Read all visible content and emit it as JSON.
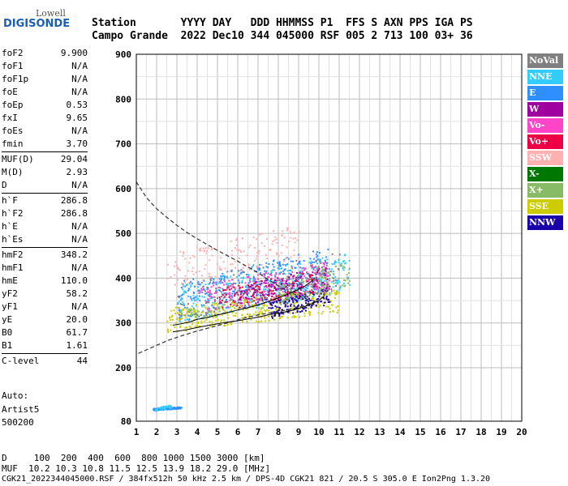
{
  "logo": {
    "top": "Lowell",
    "bottom": "DIGISONDE"
  },
  "header": {
    "row1": "Station       YYYY DAY   DDD HHMMSS P1  FFS S AXN PPS IGA PS",
    "row2": "Campo Grande  2022 Dec10 344 045000 RSF 005 2 713 100 03+ 36"
  },
  "params": [
    {
      "group": [
        {
          "name": "foF2",
          "value": "9.900"
        },
        {
          "name": "foF1",
          "value": "N/A"
        },
        {
          "name": "foF1p",
          "value": "N/A"
        },
        {
          "name": "foE",
          "value": "N/A"
        },
        {
          "name": "foEp",
          "value": "0.53"
        },
        {
          "name": "fxI",
          "value": "9.65"
        },
        {
          "name": "foEs",
          "value": "N/A"
        },
        {
          "name": "fmin",
          "value": "3.70"
        }
      ]
    },
    {
      "group": [
        {
          "name": "MUF(D)",
          "value": "29.04"
        },
        {
          "name": "M(D)",
          "value": "2.93"
        },
        {
          "name": "D",
          "value": "N/A"
        }
      ]
    },
    {
      "group": [
        {
          "name": "h`F",
          "value": "286.8"
        },
        {
          "name": "h`F2",
          "value": "286.8"
        },
        {
          "name": "h`E",
          "value": "N/A"
        },
        {
          "name": "h`Es",
          "value": "N/A"
        }
      ]
    },
    {
      "group": [
        {
          "name": "hmF2",
          "value": "348.2"
        },
        {
          "name": "hmF1",
          "value": "N/A"
        },
        {
          "name": "hmE",
          "value": "110.0"
        },
        {
          "name": "yF2",
          "value": "58.2"
        },
        {
          "name": "yF1",
          "value": "N/A"
        },
        {
          "name": "yE",
          "value": "20.0"
        },
        {
          "name": "B0",
          "value": "61.7"
        },
        {
          "name": "B1",
          "value": "1.61"
        }
      ]
    },
    {
      "group": [
        {
          "name": "C-level",
          "value": "44"
        }
      ]
    }
  ],
  "auto": {
    "line1": "Auto:",
    "line2": "Artist5",
    "line3": "500200"
  },
  "footer": {
    "d_line": "D     100  200  400  600  800 1000 1500 3000 [km]",
    "muf_line": "MUF  10.2 10.3 10.8 11.5 12.5 13.9 18.2 29.0 [MHz]",
    "info_line": "CGK21_2022344045000.RSF / 384fx512h 50 kHz 2.5 km / DPS-4D CGK21 821 / 20.5 S 305.0 E Ion2Png 1.3.20"
  },
  "legend": [
    {
      "label": "NoVal",
      "color": "#808080"
    },
    {
      "label": "NNE",
      "color": "#33ccff"
    },
    {
      "label": "E",
      "color": "#2f8fff"
    },
    {
      "label": "W",
      "color": "#a0009f"
    },
    {
      "label": "Vo-",
      "color": "#ff44c8"
    },
    {
      "label": "Vo+",
      "color": "#ee0044"
    },
    {
      "label": "SSW",
      "color": "#ffb0b0"
    },
    {
      "label": "X-",
      "color": "#007700"
    },
    {
      "label": "X+",
      "color": "#88bb66"
    },
    {
      "label": "SSE",
      "color": "#cccc00"
    },
    {
      "label": "NNW",
      "color": "#1a00aa"
    }
  ],
  "chart_data": {
    "type": "scatter",
    "title": "",
    "xlabel": "",
    "ylabel": "",
    "xlim": [
      1,
      20
    ],
    "ylim": [
      80,
      900
    ],
    "xticks": [
      1,
      2,
      3,
      4,
      5,
      6,
      7,
      8,
      9,
      10,
      11,
      12,
      13,
      14,
      15,
      16,
      17,
      18,
      19,
      20
    ],
    "yticks": [
      80,
      200,
      300,
      400,
      500,
      600,
      700,
      800,
      900
    ],
    "grid": true,
    "legend_position": "right",
    "profile_dashed": [
      [
        1,
        615
      ],
      [
        1.5,
        580
      ],
      [
        2,
        555
      ],
      [
        2.5,
        536
      ],
      [
        3,
        518
      ],
      [
        3.5,
        502
      ],
      [
        4,
        488
      ],
      [
        4.5,
        475
      ],
      [
        5,
        462
      ],
      [
        5.5,
        450
      ],
      [
        6,
        438
      ],
      [
        6.5,
        425
      ],
      [
        7,
        412
      ],
      [
        7.5,
        397
      ],
      [
        8,
        383
      ],
      [
        8.5,
        370
      ],
      [
        9,
        360
      ],
      [
        9.5,
        352
      ],
      [
        9.9,
        348
      ],
      [
        9.5,
        342
      ],
      [
        9,
        335
      ],
      [
        8.5,
        330
      ],
      [
        8,
        325
      ],
      [
        7.5,
        322
      ],
      [
        7,
        318
      ],
      [
        6.5,
        313
      ],
      [
        6,
        307
      ],
      [
        5.5,
        300
      ],
      [
        5,
        294
      ],
      [
        4.5,
        288
      ],
      [
        4,
        282
      ],
      [
        3.5,
        275
      ],
      [
        3,
        268
      ],
      [
        2.5,
        260
      ],
      [
        2,
        250
      ],
      [
        1.5,
        240
      ],
      [
        1,
        230
      ]
    ],
    "trace_o": [
      [
        2.8,
        295
      ],
      [
        3.2,
        298
      ],
      [
        3.6,
        302
      ],
      [
        4,
        308
      ],
      [
        4.5,
        312
      ],
      [
        5,
        318
      ],
      [
        5.5,
        323
      ],
      [
        6,
        329
      ],
      [
        6.5,
        334
      ],
      [
        7,
        340
      ],
      [
        7.5,
        348
      ],
      [
        8,
        356
      ],
      [
        8.5,
        365
      ],
      [
        9,
        375
      ],
      [
        9.3,
        382
      ],
      [
        9.6,
        392
      ],
      [
        9.8,
        400
      ]
    ],
    "trace_x": [
      [
        2.8,
        280
      ],
      [
        3.5,
        285
      ],
      [
        4,
        290
      ],
      [
        4.5,
        294
      ],
      [
        5,
        298
      ],
      [
        5.5,
        302
      ],
      [
        6,
        305
      ],
      [
        6.5,
        309
      ],
      [
        7,
        313
      ],
      [
        7.5,
        318
      ],
      [
        8,
        322
      ],
      [
        8.5,
        326
      ],
      [
        9,
        332
      ],
      [
        9.5,
        340
      ],
      [
        10,
        350
      ],
      [
        10.3,
        362
      ]
    ],
    "clusters": [
      {
        "series": "E",
        "x": [
          3,
          10.5
        ],
        "y": [
          300,
          470
        ],
        "count": 420
      },
      {
        "series": "NNE",
        "x": [
          3,
          11.5
        ],
        "y": [
          300,
          460
        ],
        "count": 300
      },
      {
        "series": "SSE",
        "x": [
          2.5,
          11
        ],
        "y": [
          280,
          380
        ],
        "count": 380
      },
      {
        "series": "Vo-",
        "x": [
          4,
          10.5
        ],
        "y": [
          320,
          440
        ],
        "count": 200
      },
      {
        "series": "W",
        "x": [
          6,
          10.5
        ],
        "y": [
          330,
          430
        ],
        "count": 180
      },
      {
        "series": "NNW",
        "x": [
          7.5,
          10.5
        ],
        "y": [
          310,
          380
        ],
        "count": 150
      },
      {
        "series": "SSW",
        "x": [
          2.5,
          9
        ],
        "y": [
          380,
          520
        ],
        "count": 160
      },
      {
        "series": "Vo+",
        "x": [
          5,
          10
        ],
        "y": [
          330,
          420
        ],
        "count": 120
      },
      {
        "series": "X+",
        "x": [
          8,
          11.5
        ],
        "y": [
          340,
          440
        ],
        "count": 100
      },
      {
        "series": "NoVal",
        "x": [
          3,
          11
        ],
        "y": [
          300,
          460
        ],
        "count": 120
      },
      {
        "series": "E",
        "x": [
          1.8,
          3.2
        ],
        "y": [
          106,
          114
        ],
        "count": 120
      },
      {
        "series": "NNE",
        "x": [
          1.9,
          2.7
        ],
        "y": [
          104,
          118
        ],
        "count": 40
      }
    ]
  }
}
